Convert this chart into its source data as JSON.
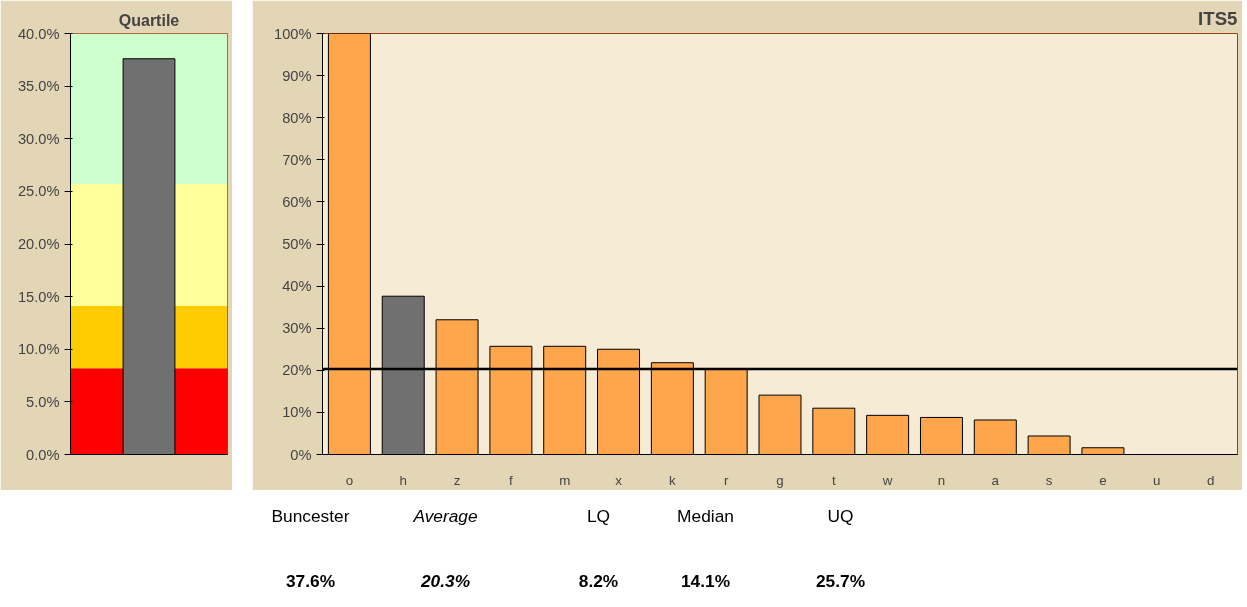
{
  "chart_data": [
    {
      "type": "bar",
      "title": "Quartile",
      "categories": [
        null
      ],
      "values": [
        37.6
      ],
      "colors": [
        "#707070"
      ],
      "ylim": [
        0,
        40
      ],
      "yticks": [
        {
          "value": 0,
          "label": "0.0%"
        },
        {
          "value": 5,
          "label": "5.0%"
        },
        {
          "value": 10,
          "label": "10.0%"
        },
        {
          "value": 15,
          "label": "15.0%"
        },
        {
          "value": 20,
          "label": "20.0%"
        },
        {
          "value": 25,
          "label": "25.0%"
        },
        {
          "value": 30,
          "label": "30.0%"
        },
        {
          "value": 35,
          "label": "35.0%"
        },
        {
          "value": 40,
          "label": "40.0%"
        }
      ],
      "bands": [
        {
          "axis": "y",
          "from": 0,
          "to": 8.2,
          "color": "#ff0000"
        },
        {
          "axis": "y",
          "from": 8.2,
          "to": 14.1,
          "color": "#ffcc00"
        },
        {
          "axis": "y",
          "from": 14.1,
          "to": 25.7,
          "color": "#ffff99"
        },
        {
          "axis": "y",
          "from": 25.7,
          "to": 40,
          "color": "#ccffcc"
        }
      ],
      "tick_labels": "y"
    },
    {
      "type": "bar",
      "title": "ITS5",
      "categories": [
        "o",
        "h",
        "z",
        "f",
        "m",
        "x",
        "k",
        "r",
        "g",
        "t",
        "w",
        "n",
        "a",
        "s",
        "e",
        "u",
        "d"
      ],
      "values": [
        100,
        37.6,
        32,
        25.7,
        25.7,
        25,
        21.8,
        20.3,
        14.1,
        11,
        9.3,
        8.8,
        8.2,
        4.4,
        1.6,
        0,
        0
      ],
      "colors": [
        "#ffa64d",
        "#707070",
        "#ffa64d",
        "#ffa64d",
        "#ffa64d",
        "#ffa64d",
        "#ffa64d",
        "#ffa64d",
        "#ffa64d",
        "#ffa64d",
        "#ffa64d",
        "#ffa64d",
        "#ffa64d",
        "#ffa64d",
        "#ffa64d",
        "#ffa64d",
        "#ffa64d"
      ],
      "ylim": [
        0,
        100
      ],
      "yticks": [
        {
          "value": 0,
          "label": "0%"
        },
        {
          "value": 10,
          "label": "10%"
        },
        {
          "value": 20,
          "label": "20%"
        },
        {
          "value": 30,
          "label": "30%"
        },
        {
          "value": 40,
          "label": "40%"
        },
        {
          "value": 50,
          "label": "50%"
        },
        {
          "value": 60,
          "label": "60%"
        },
        {
          "value": 70,
          "label": "70%"
        },
        {
          "value": 80,
          "label": "80%"
        },
        {
          "value": 90,
          "label": "90%"
        },
        {
          "value": 100,
          "label": "100%"
        }
      ],
      "ref_lines": [
        {
          "axis": "y",
          "value": 20.3,
          "color": "#000000"
        }
      ]
    },
    {
      "type": "other",
      "annotations": [
        "Buncester",
        "Average",
        "LQ",
        "Median",
        "UQ",
        "37.6%",
        "20.3%",
        "8.2%",
        "14.1%",
        "25.7%"
      ]
    }
  ]
}
